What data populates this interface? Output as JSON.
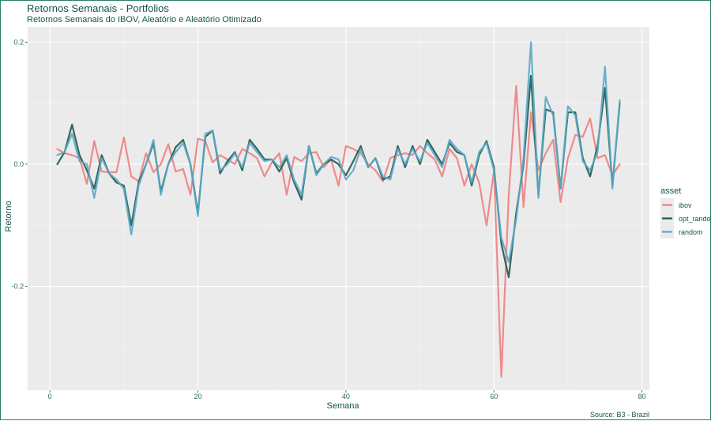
{
  "colors": {
    "panel": "#ebebeb",
    "grid_major": "#ffffff",
    "grid_minor": "#f5f5f5",
    "ibov": "#f08080",
    "opt_random": "#1d5a4e",
    "random": "#5ba8c8",
    "text": "#14544a"
  },
  "chart_data": {
    "type": "line",
    "title": "Retornos Semanais - Portfolios",
    "subtitle": "Retornos Semanais do IBOV, Aleatório e Aleatório Otimizado",
    "xlabel": "Semana",
    "ylabel": "Retorno",
    "caption": "Source: B3 - Brazil",
    "xlim": [
      -3,
      81
    ],
    "ylim": [
      -0.37,
      0.225
    ],
    "x_ticks": [
      0,
      20,
      40,
      60,
      80
    ],
    "x_tick_labels": [
      "0",
      "20",
      "40",
      "60",
      "80"
    ],
    "y_ticks": [
      -0.2,
      0.0,
      0.2
    ],
    "y_tick_labels": [
      "-0.2",
      "0.0",
      "0.2"
    ],
    "grid": true,
    "legend": {
      "title": "asset",
      "position": "right"
    },
    "x": [
      1,
      2,
      3,
      4,
      5,
      6,
      7,
      8,
      9,
      10,
      11,
      12,
      13,
      14,
      15,
      16,
      17,
      18,
      19,
      20,
      21,
      22,
      23,
      24,
      25,
      26,
      27,
      28,
      29,
      30,
      31,
      32,
      33,
      34,
      35,
      36,
      37,
      38,
      39,
      40,
      41,
      42,
      43,
      44,
      45,
      46,
      47,
      48,
      49,
      50,
      51,
      52,
      53,
      54,
      55,
      56,
      57,
      58,
      59,
      60,
      61,
      62,
      63,
      64,
      65,
      66,
      67,
      68,
      69,
      70,
      71,
      72,
      73,
      74,
      75,
      76,
      77
    ],
    "series": [
      {
        "name": "ibov",
        "color": "#f08080",
        "values": [
          0.025,
          0.018,
          0.015,
          0.01,
          -0.032,
          0.038,
          -0.012,
          -0.013,
          -0.013,
          0.044,
          -0.02,
          -0.028,
          0.018,
          -0.013,
          0.0,
          0.033,
          -0.012,
          -0.008,
          -0.05,
          0.042,
          0.038,
          0.003,
          0.015,
          0.008,
          0.0,
          0.025,
          0.018,
          0.01,
          -0.02,
          0.003,
          0.018,
          -0.05,
          0.012,
          0.005,
          0.018,
          0.02,
          -0.005,
          0.008,
          -0.035,
          0.03,
          0.025,
          0.018,
          0.0,
          -0.01,
          -0.028,
          0.01,
          0.015,
          0.018,
          0.015,
          0.03,
          0.018,
          0.008,
          -0.02,
          0.025,
          0.01,
          -0.035,
          0.0,
          -0.03,
          -0.1,
          -0.01,
          -0.348,
          -0.05,
          0.128,
          -0.07,
          0.085,
          -0.01,
          0.018,
          0.04,
          -0.062,
          0.01,
          0.048,
          0.045,
          0.075,
          0.01,
          0.015,
          -0.018,
          0.0
        ]
      },
      {
        "name": "opt_random",
        "color": "#1d5a4e",
        "values": [
          0.0,
          0.02,
          0.065,
          0.015,
          -0.01,
          -0.04,
          0.015,
          -0.015,
          -0.03,
          -0.035,
          -0.1,
          -0.03,
          0.0,
          0.035,
          -0.045,
          0.0,
          0.028,
          0.04,
          0.0,
          -0.08,
          0.045,
          0.055,
          -0.015,
          0.005,
          0.02,
          -0.01,
          0.04,
          0.025,
          0.008,
          0.008,
          -0.012,
          0.01,
          -0.03,
          -0.058,
          0.03,
          -0.015,
          0.0,
          0.008,
          0.0,
          -0.018,
          0.005,
          0.03,
          -0.005,
          0.01,
          -0.025,
          -0.02,
          0.03,
          -0.005,
          0.03,
          0.0,
          0.04,
          0.02,
          0.0,
          0.035,
          0.02,
          0.015,
          -0.035,
          0.015,
          0.038,
          -0.005,
          -0.13,
          -0.185,
          -0.08,
          0.0,
          0.145,
          -0.05,
          0.09,
          0.085,
          -0.04,
          0.085,
          0.085,
          0.01,
          -0.02,
          0.03,
          0.125,
          -0.035,
          0.1
        ]
      },
      {
        "name": "random",
        "color": "#5ba8c8",
        "values": [
          0.015,
          0.02,
          0.05,
          0.005,
          0.0,
          -0.055,
          0.01,
          -0.015,
          -0.025,
          -0.04,
          -0.115,
          -0.035,
          0.0,
          0.04,
          -0.05,
          0.0,
          0.02,
          0.035,
          0.0,
          -0.085,
          0.05,
          0.055,
          -0.01,
          0.0,
          0.018,
          -0.005,
          0.035,
          0.02,
          0.005,
          0.008,
          -0.005,
          0.015,
          -0.025,
          -0.05,
          0.03,
          -0.018,
          0.0,
          0.012,
          0.008,
          -0.025,
          -0.01,
          0.025,
          -0.005,
          0.01,
          -0.02,
          -0.025,
          0.025,
          0.0,
          0.025,
          0.005,
          0.035,
          0.015,
          -0.005,
          0.04,
          0.025,
          0.015,
          -0.03,
          0.02,
          0.035,
          -0.01,
          -0.12,
          -0.16,
          -0.09,
          0.01,
          0.2,
          -0.055,
          0.11,
          0.08,
          -0.04,
          0.095,
          0.08,
          0.005,
          -0.01,
          0.02,
          0.16,
          -0.04,
          0.105
        ]
      }
    ]
  }
}
